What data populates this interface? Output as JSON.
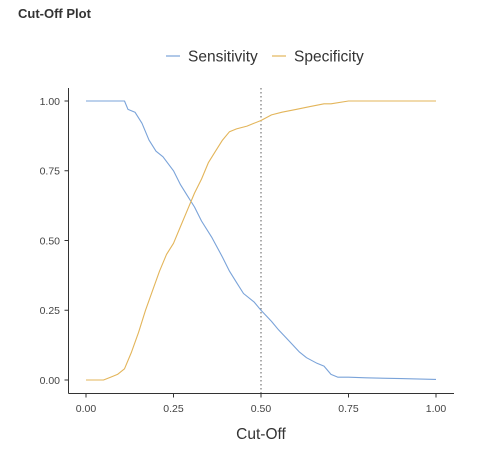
{
  "page": {
    "title": "Cut-Off Plot"
  },
  "chart_data": {
    "type": "line",
    "title": "Cut-Off Plot",
    "xlabel": "Cut-Off",
    "ylabel": "",
    "xlim": [
      0,
      1
    ],
    "ylim": [
      0,
      1
    ],
    "grid": false,
    "legend_position": "top",
    "x_ticks": [
      0.0,
      0.25,
      0.5,
      0.75,
      1.0
    ],
    "x_tick_labels": [
      "0.00",
      "0.25",
      "0.50",
      "0.75",
      "1.00"
    ],
    "y_ticks": [
      0.0,
      0.25,
      0.5,
      0.75,
      1.0
    ],
    "y_tick_labels": [
      "0.00",
      "0.25",
      "0.50",
      "0.75",
      "1.00"
    ],
    "vline": 0.5,
    "series": [
      {
        "name": "Sensitivity",
        "color": "#7aa3d9",
        "x": [
          0.0,
          0.05,
          0.11,
          0.12,
          0.14,
          0.16,
          0.18,
          0.2,
          0.22,
          0.25,
          0.27,
          0.29,
          0.31,
          0.33,
          0.36,
          0.39,
          0.41,
          0.43,
          0.45,
          0.48,
          0.5,
          0.53,
          0.55,
          0.58,
          0.61,
          0.63,
          0.66,
          0.68,
          0.7,
          0.72,
          0.75,
          0.8,
          0.9,
          1.0
        ],
        "y": [
          1.0,
          1.0,
          1.0,
          0.97,
          0.96,
          0.92,
          0.86,
          0.82,
          0.8,
          0.75,
          0.7,
          0.66,
          0.62,
          0.57,
          0.51,
          0.44,
          0.39,
          0.35,
          0.31,
          0.28,
          0.25,
          0.21,
          0.18,
          0.14,
          0.1,
          0.08,
          0.06,
          0.05,
          0.02,
          0.01,
          0.01,
          0.008,
          0.005,
          0.002
        ]
      },
      {
        "name": "Specificity",
        "color": "#e3b55a",
        "x": [
          0.0,
          0.05,
          0.07,
          0.09,
          0.11,
          0.13,
          0.15,
          0.17,
          0.19,
          0.21,
          0.23,
          0.25,
          0.27,
          0.29,
          0.31,
          0.33,
          0.35,
          0.37,
          0.39,
          0.41,
          0.43,
          0.46,
          0.48,
          0.5,
          0.53,
          0.56,
          0.6,
          0.64,
          0.68,
          0.7,
          0.75,
          0.8,
          0.9,
          1.0
        ],
        "y": [
          0.0,
          0.0,
          0.01,
          0.02,
          0.04,
          0.1,
          0.17,
          0.25,
          0.32,
          0.39,
          0.45,
          0.49,
          0.55,
          0.61,
          0.67,
          0.72,
          0.78,
          0.82,
          0.86,
          0.89,
          0.9,
          0.91,
          0.92,
          0.93,
          0.95,
          0.96,
          0.97,
          0.98,
          0.99,
          0.99,
          1.0,
          1.0,
          1.0,
          1.0
        ]
      }
    ]
  }
}
